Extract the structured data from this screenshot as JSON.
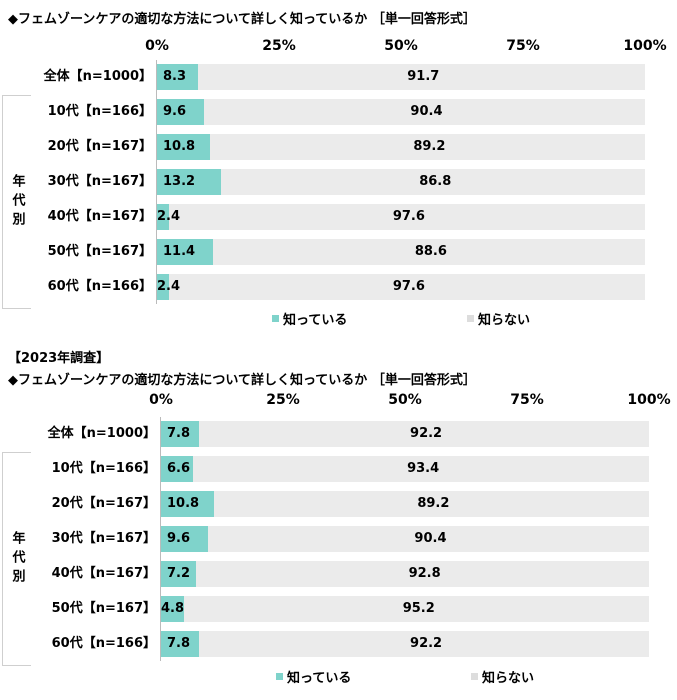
{
  "chart_data": [
    {
      "type": "bar",
      "orientation": "horizontal",
      "stacked": true,
      "pre_title": "",
      "title": "◆フェムゾーンケアの適切な方法について詳しく知っているか ［単一回答形式］",
      "x_ticks": [
        "0%",
        "25%",
        "50%",
        "75%",
        "100%"
      ],
      "xlim": [
        0,
        100
      ],
      "group_label": "年代別",
      "categories": [
        "全体【n=1000】",
        "10代【n=166】",
        "20代【n=167】",
        "30代【n=167】",
        "40代【n=167】",
        "50代【n=167】",
        "60代【n=166】"
      ],
      "series": [
        {
          "name": "知っている",
          "color": "#7fd3cb",
          "values": [
            8.3,
            9.6,
            10.8,
            13.2,
            2.4,
            11.4,
            2.4
          ]
        },
        {
          "name": "知らない",
          "color": "#ebebeb",
          "values": [
            91.7,
            90.4,
            89.2,
            86.8,
            97.6,
            88.6,
            97.6
          ]
        }
      ],
      "legend": "bottom"
    },
    {
      "type": "bar",
      "orientation": "horizontal",
      "stacked": true,
      "pre_title": "【2023年調査】",
      "title": "◆フェムゾーンケアの適切な方法について詳しく知っているか ［単一回答形式］",
      "x_ticks": [
        "0%",
        "25%",
        "50%",
        "75%",
        "100%"
      ],
      "xlim": [
        0,
        100
      ],
      "group_label": "年代別",
      "categories": [
        "全体【n=1000】",
        "10代【n=166】",
        "20代【n=167】",
        "30代【n=167】",
        "40代【n=167】",
        "50代【n=167】",
        "60代【n=166】"
      ],
      "series": [
        {
          "name": "知っている",
          "color": "#7fd3cb",
          "values": [
            7.8,
            6.6,
            10.8,
            9.6,
            7.2,
            4.8,
            7.8
          ]
        },
        {
          "name": "知らない",
          "color": "#ebebeb",
          "values": [
            92.2,
            93.4,
            89.2,
            90.4,
            92.8,
            95.2,
            92.2
          ]
        }
      ],
      "legend": "bottom"
    }
  ]
}
